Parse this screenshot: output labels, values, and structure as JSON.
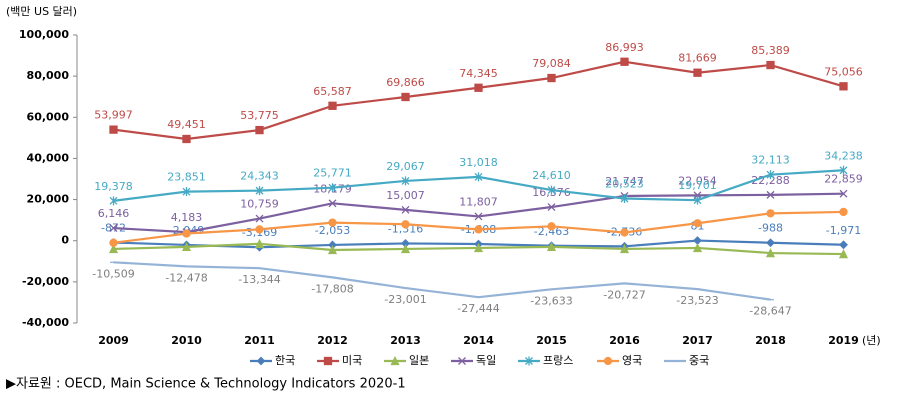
{
  "chart_data": {
    "type": "line",
    "y_unit": "(백만 US 달러)",
    "x_unit": "(년)",
    "source": "▶자료원 : OECD, Main Science & Technology Indicators 2020-1",
    "categories": [
      "2009",
      "2010",
      "2011",
      "2012",
      "2013",
      "2014",
      "2015",
      "2016",
      "2017",
      "2018",
      "2019"
    ],
    "ylim": [
      -40000,
      100000
    ],
    "yticks": [
      {
        "value": -40000,
        "label": "-40,000"
      },
      {
        "value": -20000,
        "label": "-20,000"
      },
      0,
      {
        "value": 20000,
        "label": "20,000"
      },
      {
        "value": 40000,
        "label": "40,000"
      },
      {
        "value": 60000,
        "label": "60,000"
      },
      {
        "value": 80000,
        "label": "80,000"
      },
      {
        "value": 100000,
        "label": "100,000"
      }
    ],
    "series": [
      {
        "name": "한국",
        "color": "#4a7ebb",
        "marker": "diamond",
        "values": [
          -872,
          -2049,
          -3169,
          -2053,
          -1316,
          -1608,
          -2463,
          -2736,
          81,
          -988,
          -1971
        ],
        "value_labels": [
          "-872",
          "-2,049",
          "-3,169",
          "-2,053",
          "-1,316",
          "-1,608",
          "-2,463",
          "-2,736",
          "81",
          "-988",
          "-1,971"
        ]
      },
      {
        "name": "미국",
        "color": "#be4b48",
        "marker": "square",
        "values": [
          53997,
          49451,
          53775,
          65587,
          69866,
          74345,
          79084,
          86993,
          81669,
          85389,
          75056
        ],
        "value_labels": [
          "53,997",
          "49,451",
          "53,775",
          "65,587",
          "69,866",
          "74,345",
          "79,084",
          "86,993",
          "81,669",
          "85,389",
          "75,056"
        ]
      },
      {
        "name": "일본",
        "color": "#98b954",
        "marker": "triangle",
        "values": [
          -4000,
          -3000,
          -1500,
          -4500,
          -4000,
          -3500,
          -3000,
          -4000,
          -3500,
          -6000,
          -6500
        ]
      },
      {
        "name": "독일",
        "color": "#7d60a0",
        "marker": "x",
        "values": [
          6146,
          4183,
          10759,
          18179,
          15007,
          11807,
          16376,
          21747,
          22054,
          22288,
          22859
        ],
        "value_labels": [
          "6,146",
          "4,183",
          "10,759",
          "18,179",
          "15,007",
          "11,807",
          "16,376",
          "21,747",
          "22,054",
          "22,288",
          "22,859"
        ]
      },
      {
        "name": "프랑스",
        "color": "#46aac5",
        "marker": "star",
        "values": [
          19378,
          23851,
          24343,
          25771,
          29067,
          31018,
          24610,
          20523,
          19701,
          32113,
          34238
        ],
        "value_labels": [
          "19,378",
          "23,851",
          "24,343",
          "25,771",
          "29,067",
          "31,018",
          "24,610",
          "20,523",
          "19,701",
          "32,113",
          "34,238"
        ]
      },
      {
        "name": "영국",
        "color": "#f79646",
        "marker": "circle",
        "values": [
          -1000,
          3500,
          5500,
          8800,
          8000,
          5500,
          7000,
          4000,
          8500,
          13300,
          14000
        ]
      },
      {
        "name": "중국",
        "color": "#95b3d7",
        "marker": "dash",
        "values": [
          -10509,
          -12478,
          -13344,
          -17808,
          -23001,
          -27444,
          -23633,
          -20727,
          -23523,
          -28647,
          null
        ],
        "value_labels": [
          "-10,509",
          "-12,478",
          "-13,344",
          "-17,808",
          "-23,001",
          "-27,444",
          "-23,633",
          "-20,727",
          "-23,523",
          "-28,647",
          null
        ]
      }
    ]
  }
}
